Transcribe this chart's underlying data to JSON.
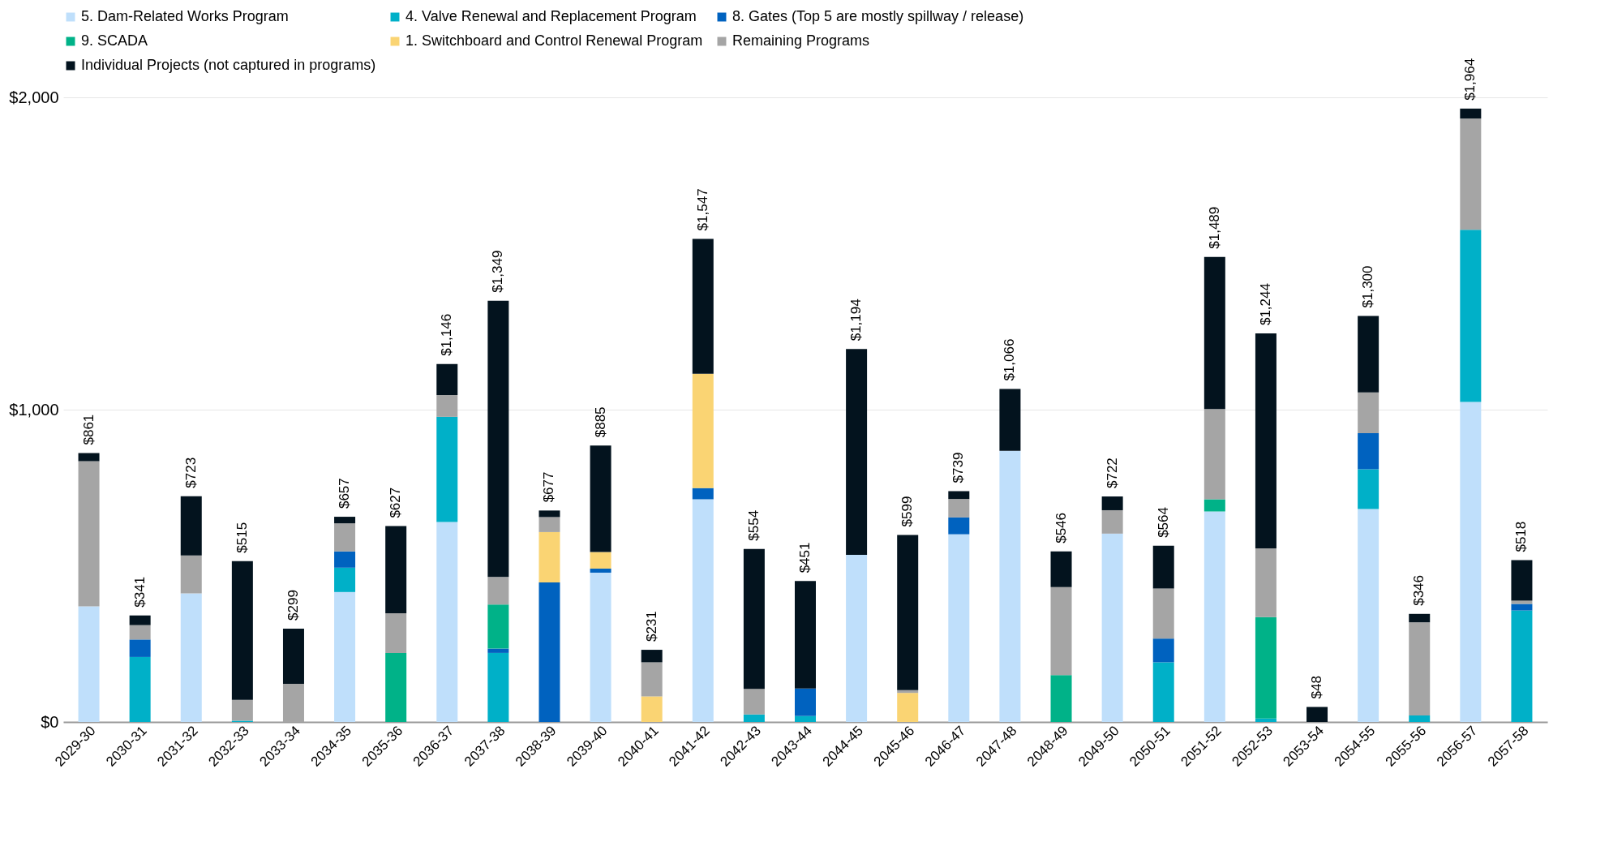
{
  "chart_data": {
    "type": "bar",
    "stacked": true,
    "legend": "top left",
    "grid": "y",
    "categories": [
      "2029-30",
      "2030-31",
      "2031-32",
      "2032-33",
      "2033-34",
      "2034-35",
      "2035-36",
      "2036-37",
      "2037-38",
      "2038-39",
      "2039-40",
      "2040-41",
      "2041-42",
      "2042-43",
      "2043-44",
      "2044-45",
      "2045-46",
      "2046-47",
      "2047-48",
      "2048-49",
      "2049-50",
      "2050-51",
      "2051-52",
      "2052-53",
      "2053-54",
      "2054-55",
      "2055-56",
      "2056-57",
      "2057-58"
    ],
    "series": [
      {
        "name": "5. Dam-Related Works Program",
        "color": "#bfdffb",
        "values": [
          370,
          0,
          412,
          0,
          0,
          416,
          0,
          640,
          0,
          0,
          478,
          0,
          713,
          0,
          0,
          535,
          0,
          601,
          868,
          0,
          603,
          0,
          674,
          0,
          0,
          682,
          0,
          1025,
          0
        ]
      },
      {
        "name": "4. Valve Renewal and Replacement Program",
        "color": "#00b0c8",
        "values": [
          0,
          208,
          0,
          4,
          0,
          78,
          0,
          337,
          221,
          0,
          0,
          0,
          0,
          24,
          19,
          0,
          0,
          0,
          0,
          0,
          0,
          191,
          0,
          11,
          0,
          127,
          21,
          551,
          357
        ]
      },
      {
        "name": "8. Gates (Top 5 are mostly spillway / release)",
        "color": "#0062bf",
        "values": [
          0,
          56,
          0,
          0,
          0,
          52,
          0,
          0,
          14,
          447,
          13,
          0,
          36,
          0,
          88,
          0,
          0,
          54,
          0,
          0,
          0,
          76,
          0,
          0,
          0,
          116,
          0,
          0,
          21
        ]
      },
      {
        "name": "9. SCADA",
        "color": "#00b288",
        "values": [
          0,
          0,
          0,
          0,
          0,
          0,
          221,
          0,
          141,
          0,
          0,
          0,
          0,
          0,
          0,
          0,
          0,
          0,
          0,
          150,
          0,
          0,
          39,
          325,
          0,
          0,
          0,
          0,
          0
        ]
      },
      {
        "name": "1. Switchboard and Control Renewal Program",
        "color": "#fad473",
        "values": [
          0,
          0,
          0,
          0,
          0,
          0,
          0,
          0,
          0,
          161,
          53,
          82,
          366,
          0,
          0,
          0,
          93,
          0,
          0,
          0,
          0,
          0,
          0,
          0,
          0,
          0,
          0,
          0,
          0
        ]
      },
      {
        "name": "Remaining Programs",
        "color": "#a5a5a5",
        "values": [
          465,
          46,
          121,
          67,
          122,
          90,
          127,
          70,
          88,
          48,
          0,
          109,
          0,
          82,
          0,
          0,
          9,
          59,
          0,
          282,
          75,
          160,
          289,
          220,
          0,
          130,
          298,
          356,
          10
        ]
      },
      {
        "name": "Individual Projects (not captured in programs)",
        "color": "#03131e",
        "values": [
          26,
          31,
          190,
          444,
          177,
          21,
          279,
          99,
          885,
          21,
          341,
          40,
          432,
          448,
          344,
          659,
          497,
          25,
          198,
          114,
          44,
          137,
          487,
          688,
          48,
          245,
          27,
          32,
          130
        ]
      }
    ],
    "totals": [
      "$861",
      "$341",
      "$723",
      "$515",
      "$299",
      "$657",
      "$627",
      "$1,146",
      "$1,349",
      "$677",
      "$885",
      "$231",
      "$1,547",
      "$554",
      "$451",
      "$1,194",
      "$599",
      "$739",
      "$1,066",
      "$546",
      "$722",
      "$564",
      "$1,489",
      "$1,244",
      "$48",
      "$1,300",
      "$346",
      "$1,964",
      "$518"
    ],
    "ylim": [
      0,
      2000
    ],
    "yticks": [
      {
        "value": 0,
        "label": "$0"
      },
      {
        "value": 1000,
        "label": "$1,000"
      },
      {
        "value": 2000,
        "label": "$2,000"
      }
    ]
  }
}
